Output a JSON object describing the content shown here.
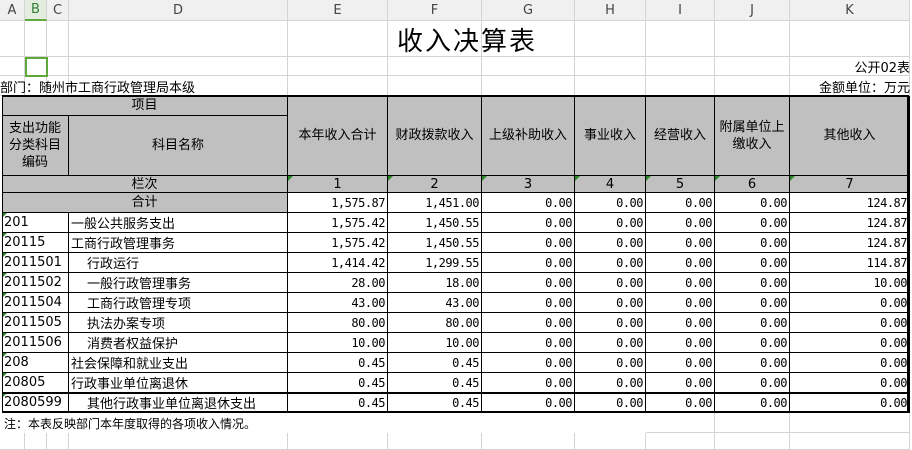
{
  "columns": [
    "A",
    "B",
    "C",
    "D",
    "E",
    "F",
    "G",
    "H",
    "I",
    "J",
    "K"
  ],
  "selected_column": "B",
  "title": "收入决算表",
  "form_no": "公开02表",
  "department": "部门：随州市工商行政管理局本级",
  "unit": "金额单位：万元",
  "header": {
    "project": "项目",
    "code": "支出功能分类科目编码",
    "name": "科目名称",
    "cols": [
      "本年收入合计",
      "财政拨款收入",
      "上级补助收入",
      "事业收入",
      "经营收入",
      "附属单位上缴收入",
      "其他收入"
    ],
    "row_label": "栏次",
    "row_numbers": [
      "1",
      "2",
      "3",
      "4",
      "5",
      "6",
      "7"
    ]
  },
  "total": {
    "label": "合计",
    "values": [
      "1,575.87",
      "1,451.00",
      "0.00",
      "0.00",
      "0.00",
      "0.00",
      "124.87"
    ]
  },
  "rows": [
    {
      "code": "201",
      "name": "一般公共服务支出",
      "indent": false,
      "values": [
        "1,575.42",
        "1,450.55",
        "0.00",
        "0.00",
        "0.00",
        "0.00",
        "124.87"
      ]
    },
    {
      "code": "20115",
      "name": "工商行政管理事务",
      "indent": false,
      "values": [
        "1,575.42",
        "1,450.55",
        "0.00",
        "0.00",
        "0.00",
        "0.00",
        "124.87"
      ]
    },
    {
      "code": "2011501",
      "name": "行政运行",
      "indent": true,
      "values": [
        "1,414.42",
        "1,299.55",
        "0.00",
        "0.00",
        "0.00",
        "0.00",
        "114.87"
      ]
    },
    {
      "code": "2011502",
      "name": "一般行政管理事务",
      "indent": true,
      "values": [
        "28.00",
        "18.00",
        "0.00",
        "0.00",
        "0.00",
        "0.00",
        "10.00"
      ]
    },
    {
      "code": "2011504",
      "name": "工商行政管理专项",
      "indent": true,
      "values": [
        "43.00",
        "43.00",
        "0.00",
        "0.00",
        "0.00",
        "0.00",
        "0.00"
      ]
    },
    {
      "code": "2011505",
      "name": "执法办案专项",
      "indent": true,
      "values": [
        "80.00",
        "80.00",
        "0.00",
        "0.00",
        "0.00",
        "0.00",
        "0.00"
      ]
    },
    {
      "code": "2011506",
      "name": "消费者权益保护",
      "indent": true,
      "values": [
        "10.00",
        "10.00",
        "0.00",
        "0.00",
        "0.00",
        "0.00",
        "0.00"
      ]
    },
    {
      "code": "208",
      "name": "社会保障和就业支出",
      "indent": false,
      "values": [
        "0.45",
        "0.45",
        "0.00",
        "0.00",
        "0.00",
        "0.00",
        "0.00"
      ]
    },
    {
      "code": "20805",
      "name": "行政事业单位离退休",
      "indent": false,
      "values": [
        "0.45",
        "0.45",
        "0.00",
        "0.00",
        "0.00",
        "0.00",
        "0.00"
      ]
    },
    {
      "code": "2080599",
      "name": "其他行政事业单位离退休支出",
      "indent": true,
      "values": [
        "0.45",
        "0.45",
        "0.00",
        "0.00",
        "0.00",
        "0.00",
        "0.00"
      ]
    }
  ],
  "note": "注：本表反映部门本年度取得的各项收入情况。",
  "colors": {
    "header_fill": "#c0c0c0",
    "selection": "#5fa83a"
  }
}
